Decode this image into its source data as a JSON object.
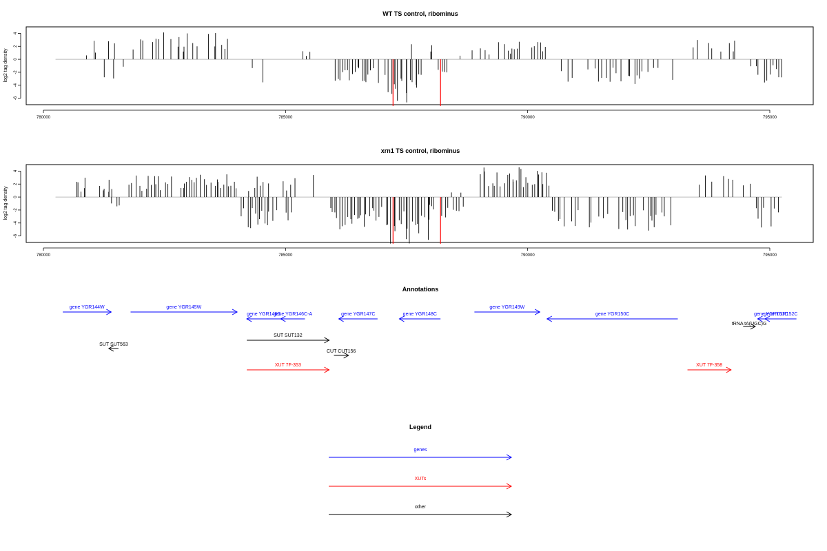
{
  "colors": {
    "gene": "#0000ff",
    "xut": "#ff0000",
    "other": "#000000",
    "highlight": "#ff0000",
    "baseline": "#bbbbbb"
  },
  "chart_data": [
    {
      "type": "bar",
      "title": "WT TS control, ribominus",
      "ylabel": "log2 tag density",
      "ylim": [
        -7,
        5
      ],
      "xlim": [
        780000,
        795600
      ],
      "yticks": [
        "4",
        "2",
        "0",
        "-2",
        "-4",
        "-6"
      ],
      "ytick_values": [
        4,
        2,
        0,
        -2,
        -4,
        -6
      ],
      "xticks": [
        "780000",
        "785000",
        "790000",
        "795000"
      ],
      "xtick_values": [
        780000,
        785000,
        790000,
        795000
      ],
      "bin_size": 50,
      "data_range": [
        780250,
        795250
      ],
      "highlight": [
        {
          "x": 787220,
          "y": -7.2
        },
        {
          "x": 788200,
          "y": -7.2
        }
      ],
      "segments": [
        {
          "start": 780250,
          "end": 780900,
          "sign": 1,
          "max": 1.0,
          "density": 0.15
        },
        {
          "start": 780900,
          "end": 781500,
          "sign": 1,
          "max": 3.2,
          "density": 0.4
        },
        {
          "start": 781000,
          "end": 781700,
          "sign": -1,
          "max": 3.0,
          "density": 0.25
        },
        {
          "start": 781800,
          "end": 783900,
          "sign": 1,
          "max": 4.2,
          "density": 0.55
        },
        {
          "start": 783900,
          "end": 784400,
          "sign": -1,
          "max": 1.8,
          "density": 0.25
        },
        {
          "start": 784400,
          "end": 785100,
          "sign": -1,
          "max": 4.6,
          "density": 0.4
        },
        {
          "start": 785200,
          "end": 785900,
          "sign": 1,
          "max": 2.0,
          "density": 0.15
        },
        {
          "start": 786000,
          "end": 786950,
          "sign": -1,
          "max": 3.8,
          "density": 0.85
        },
        {
          "start": 787050,
          "end": 787850,
          "sign": -1,
          "max": 6.8,
          "density": 1.0
        },
        {
          "start": 787600,
          "end": 788050,
          "sign": 1,
          "max": 2.6,
          "density": 0.3
        },
        {
          "start": 787900,
          "end": 788350,
          "sign": -1,
          "max": 3.0,
          "density": 0.45
        },
        {
          "start": 788500,
          "end": 789100,
          "sign": 1,
          "max": 2.0,
          "density": 0.15
        },
        {
          "start": 789100,
          "end": 790400,
          "sign": 1,
          "max": 2.8,
          "density": 0.55
        },
        {
          "start": 790500,
          "end": 793000,
          "sign": -1,
          "max": 4.0,
          "density": 0.45
        },
        {
          "start": 793300,
          "end": 794600,
          "sign": 1,
          "max": 3.0,
          "density": 0.3
        },
        {
          "start": 794600,
          "end": 795250,
          "sign": -1,
          "max": 3.6,
          "density": 0.8
        }
      ]
    },
    {
      "type": "bar",
      "title": "xrn1 TS control, ribominus",
      "ylabel": "log2 tag density",
      "ylim": [
        -7,
        5
      ],
      "xlim": [
        780000,
        795600
      ],
      "yticks": [
        "4",
        "2",
        "0",
        "-2",
        "-4",
        "-6"
      ],
      "ytick_values": [
        4,
        2,
        0,
        -2,
        -4,
        -6
      ],
      "xticks": [
        "780000",
        "785000",
        "790000",
        "795000"
      ],
      "xtick_values": [
        780000,
        785000,
        790000,
        795000
      ],
      "bin_size": 50,
      "data_range": [
        780250,
        795250
      ],
      "highlight": [
        {
          "x": 787220,
          "y": -7.2
        },
        {
          "x": 788200,
          "y": -7.2
        }
      ],
      "segments": [
        {
          "start": 780650,
          "end": 781500,
          "sign": 1,
          "max": 3.0,
          "density": 0.65
        },
        {
          "start": 781400,
          "end": 781650,
          "sign": -1,
          "max": 2.0,
          "density": 0.5
        },
        {
          "start": 781700,
          "end": 784000,
          "sign": 1,
          "max": 3.6,
          "density": 0.75
        },
        {
          "start": 784000,
          "end": 785300,
          "sign": -1,
          "max": 5.5,
          "density": 0.6
        },
        {
          "start": 784200,
          "end": 785200,
          "sign": 1,
          "max": 3.4,
          "density": 0.4
        },
        {
          "start": 785500,
          "end": 785800,
          "sign": 1,
          "max": 3.4,
          "density": 0.3
        },
        {
          "start": 785900,
          "end": 787000,
          "sign": -1,
          "max": 5.5,
          "density": 0.95
        },
        {
          "start": 787050,
          "end": 788000,
          "sign": -1,
          "max": 7.2,
          "density": 1.0
        },
        {
          "start": 787900,
          "end": 788700,
          "sign": -1,
          "max": 3.2,
          "density": 0.6
        },
        {
          "start": 788300,
          "end": 789000,
          "sign": 1,
          "max": 1.5,
          "density": 0.3
        },
        {
          "start": 789000,
          "end": 790450,
          "sign": 1,
          "max": 4.8,
          "density": 0.95
        },
        {
          "start": 790450,
          "end": 793100,
          "sign": -1,
          "max": 5.2,
          "density": 0.55
        },
        {
          "start": 793200,
          "end": 794700,
          "sign": 1,
          "max": 3.6,
          "density": 0.35
        },
        {
          "start": 794700,
          "end": 795250,
          "sign": -1,
          "max": 4.8,
          "density": 0.85
        }
      ]
    }
  ],
  "annotations": {
    "title": "Annotations",
    "features": [
      {
        "label": "gene YGR144W",
        "type": "gene",
        "start": 780400,
        "end": 781400,
        "strand": "+",
        "row": 0
      },
      {
        "label": "gene YGR145W",
        "type": "gene",
        "start": 781800,
        "end": 784000,
        "strand": "+",
        "row": 0
      },
      {
        "label": "gene YGR146C",
        "type": "gene",
        "start": 784200,
        "end": 784900,
        "strand": "-",
        "row": 1
      },
      {
        "label": "gene YGR146C-A",
        "type": "gene",
        "start": 784900,
        "end": 785400,
        "strand": "-",
        "row": 1
      },
      {
        "label": "gene YGR147C",
        "type": "gene",
        "start": 786100,
        "end": 786900,
        "strand": "-",
        "row": 1
      },
      {
        "label": "gene YGR148C",
        "type": "gene",
        "start": 787350,
        "end": 788200,
        "strand": "-",
        "row": 1
      },
      {
        "label": "gene YGR149W",
        "type": "gene",
        "start": 788900,
        "end": 790250,
        "strand": "+",
        "row": 0
      },
      {
        "label": "gene YGR150C",
        "type": "gene",
        "start": 790400,
        "end": 793100,
        "strand": "-",
        "row": 1
      },
      {
        "label": "gene YGR151C",
        "type": "gene",
        "start": 794750,
        "end": 795300,
        "strand": "-",
        "row": 1
      },
      {
        "label": "gene YGR152C",
        "type": "gene",
        "start": 794900,
        "end": 795550,
        "strand": "-",
        "row": 1
      },
      {
        "label": "tRNA tA(UGC)G",
        "type": "other",
        "start": 794450,
        "end": 794700,
        "strand": "+",
        "row": 2
      },
      {
        "label": "SUT SUT563",
        "type": "other",
        "start": 781400,
        "end": 781500,
        "strand": "-",
        "row": 4
      },
      {
        "label": "SUT SUT132",
        "type": "other",
        "start": 784200,
        "end": 785900,
        "strand": "+",
        "row": 3
      },
      {
        "label": "CUT CUT156",
        "type": "other",
        "start": 786000,
        "end": 786300,
        "strand": "+",
        "row": 5
      },
      {
        "label": "XUT 7F-353",
        "type": "xut",
        "start": 784200,
        "end": 785900,
        "strand": "+",
        "row": 6
      },
      {
        "label": "XUT 7F-358",
        "type": "xut",
        "start": 793300,
        "end": 794200,
        "strand": "+",
        "row": 6
      }
    ]
  },
  "legend": {
    "title": "Legend",
    "items": [
      {
        "label": "genes",
        "type": "gene"
      },
      {
        "label": "XUTs",
        "type": "xut"
      },
      {
        "label": "other",
        "type": "other"
      }
    ]
  }
}
